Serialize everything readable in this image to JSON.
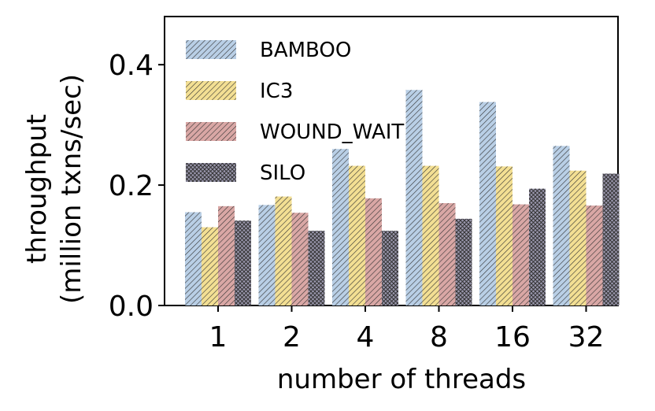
{
  "chart_data": {
    "type": "bar",
    "categories": [
      "1",
      "2",
      "4",
      "8",
      "16",
      "32"
    ],
    "series": [
      {
        "name": "BAMBOO",
        "values": [
          0.155,
          0.167,
          0.26,
          0.358,
          0.338,
          0.265
        ],
        "color": "#b9cfe6",
        "hatch": "diag-fine"
      },
      {
        "name": "IC3",
        "values": [
          0.13,
          0.181,
          0.232,
          0.232,
          0.231,
          0.224
        ],
        "color": "#f3df93",
        "hatch": "diag-fine"
      },
      {
        "name": "WOUND_WAIT",
        "values": [
          0.165,
          0.154,
          0.178,
          0.17,
          0.168,
          0.166
        ],
        "color": "#d9a7a5",
        "hatch": "diag-fine"
      },
      {
        "name": "SILO",
        "values": [
          0.141,
          0.124,
          0.124,
          0.144,
          0.194,
          0.219
        ],
        "color": "#9a97ad",
        "hatch": "crosshatch"
      }
    ],
    "xlabel": "number of threads",
    "ylabel_lines": [
      "throughput",
      "(million txns/sec)"
    ],
    "ylim": [
      0,
      0.48
    ],
    "yticks": [
      "0.0",
      "0.2",
      "0.4"
    ],
    "ytick_values": [
      0,
      0.2,
      0.4
    ],
    "grid": false,
    "legend_position": "top-left"
  }
}
